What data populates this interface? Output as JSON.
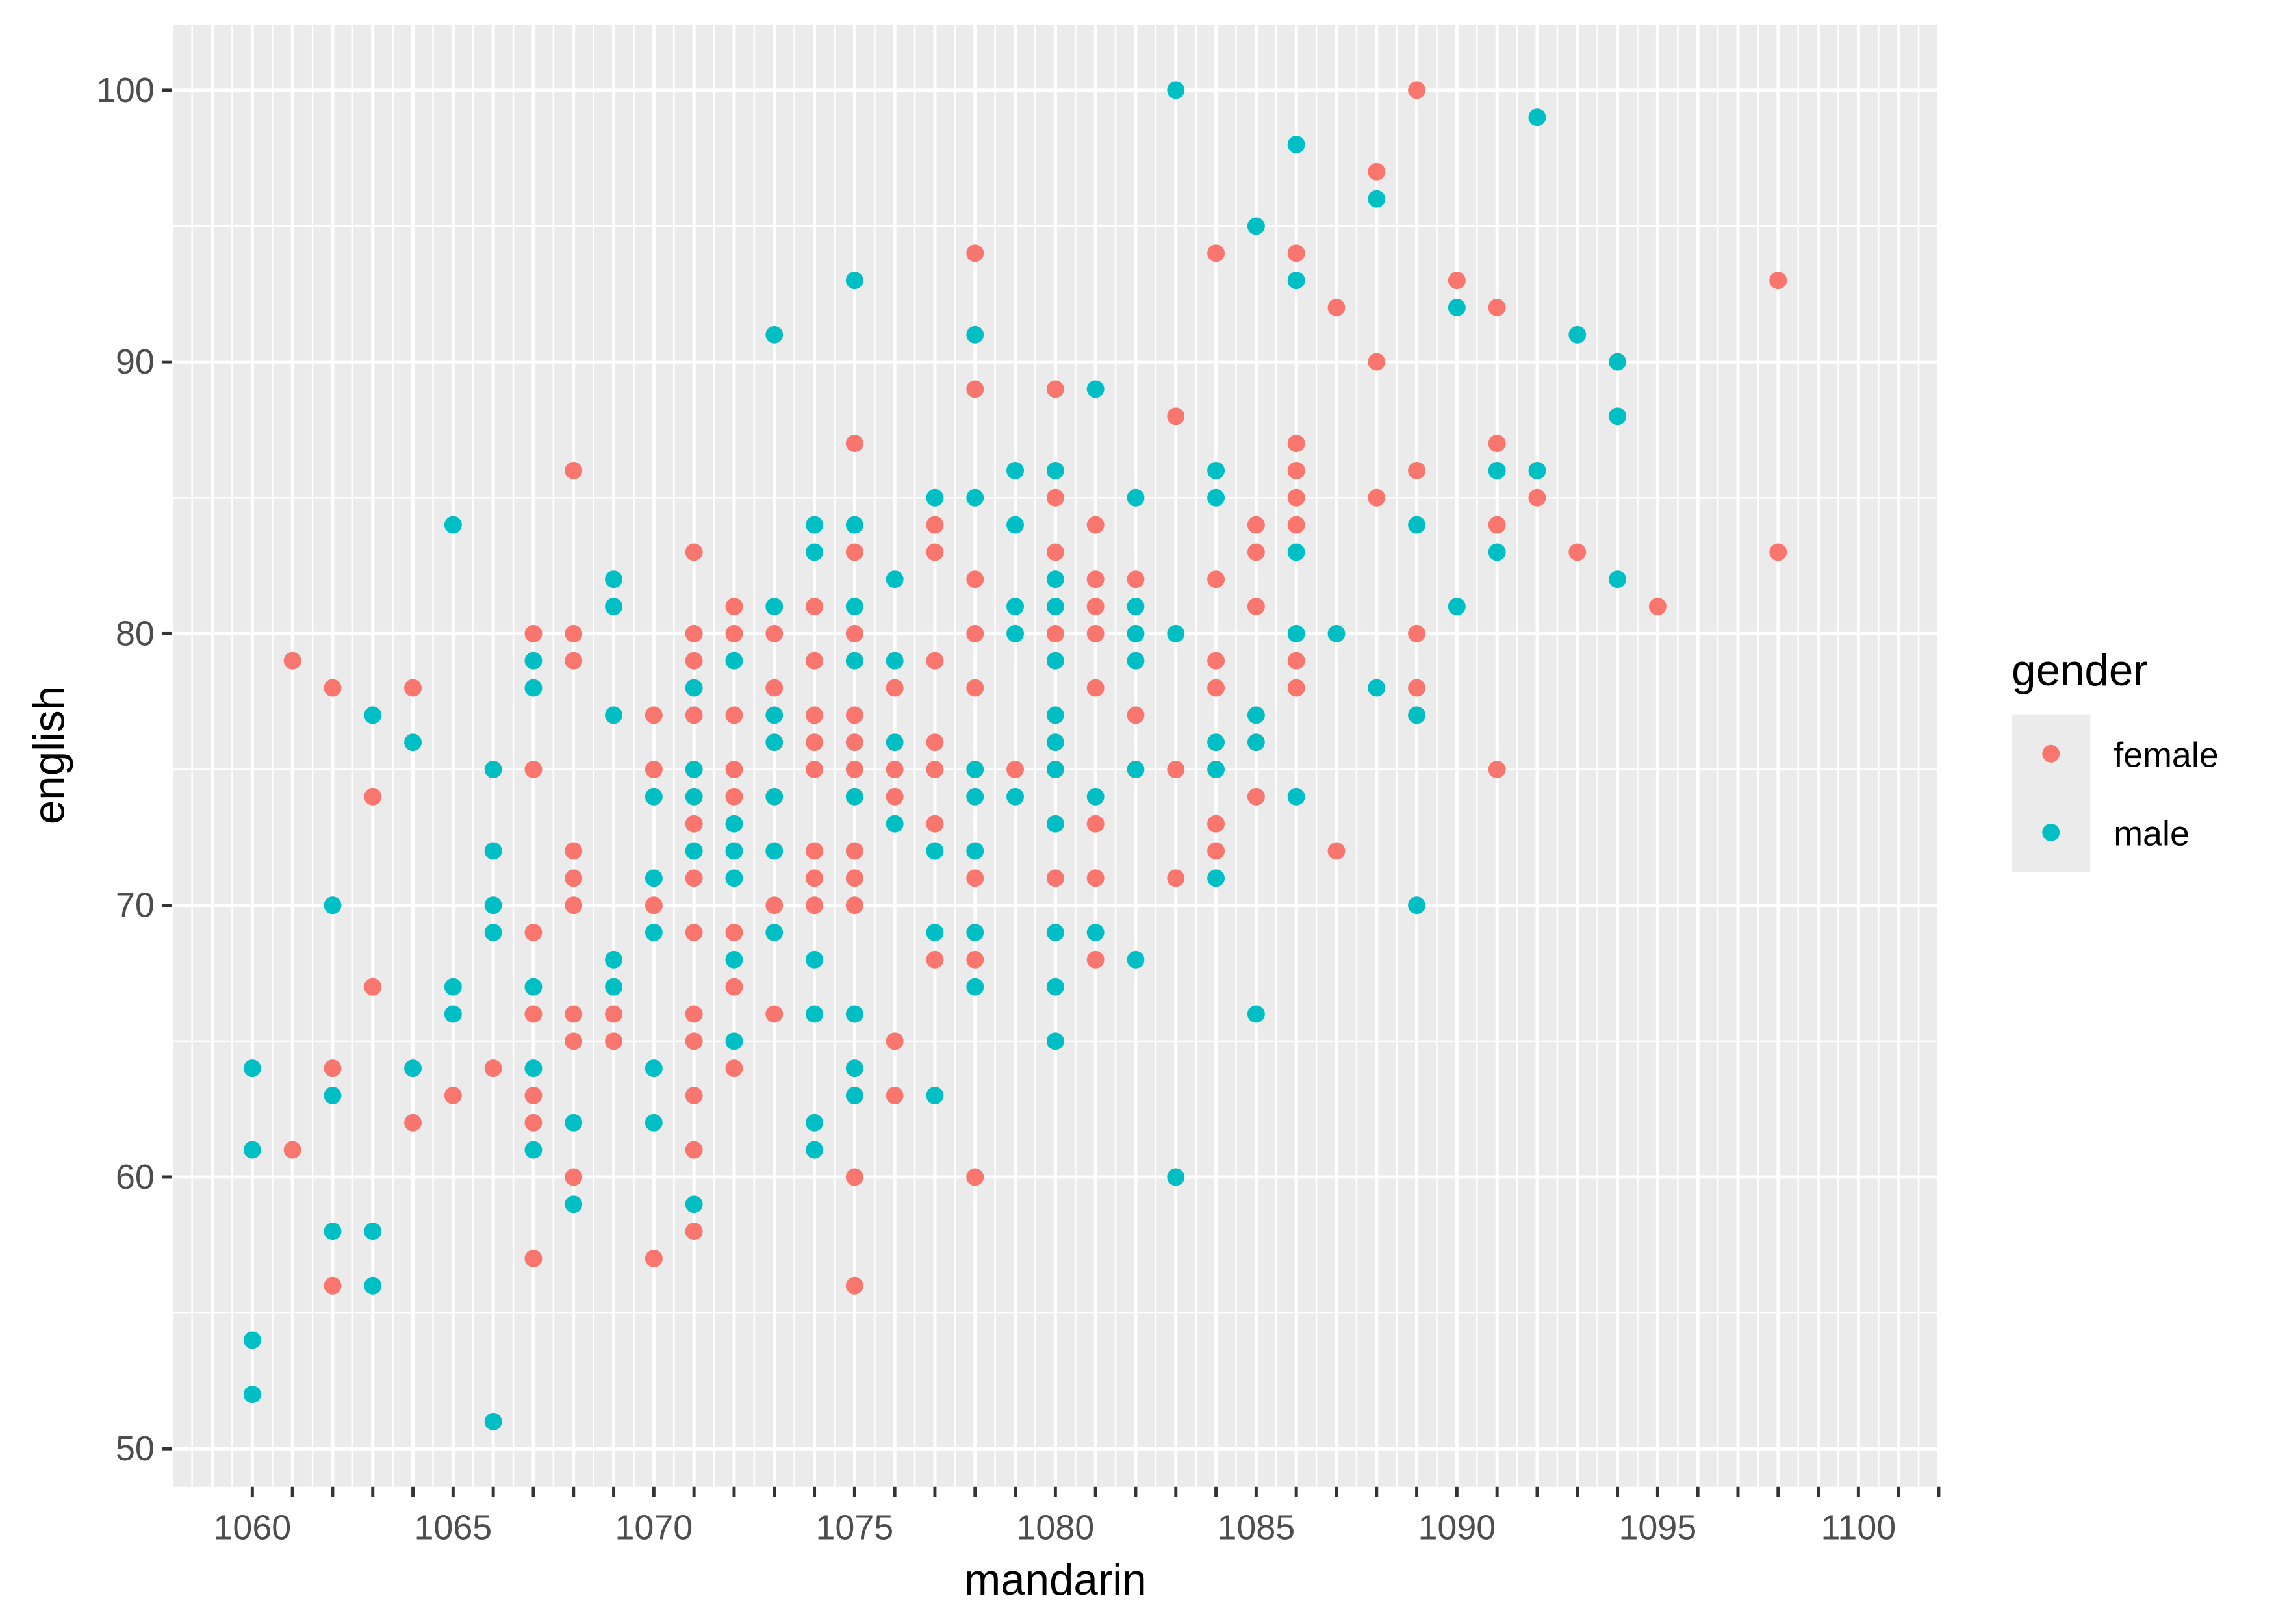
{
  "chart_data": {
    "type": "scatter",
    "xlabel": "mandarin",
    "ylabel": "english",
    "xlim": [
      1058,
      1102
    ],
    "ylim": [
      48.6,
      102.4
    ],
    "x_ticks": [
      1060,
      1065,
      1070,
      1075,
      1080,
      1085,
      1090,
      1095,
      1100
    ],
    "y_ticks": [
      50,
      60,
      70,
      80,
      90,
      100
    ],
    "grid": true,
    "legend": {
      "title": "gender",
      "placement": "right"
    },
    "series": [
      {
        "name": "female",
        "color": "#F8766D",
        "points": [
          [
            1061,
            79
          ],
          [
            1061,
            61
          ],
          [
            1062,
            78
          ],
          [
            1062,
            64
          ],
          [
            1062,
            56
          ],
          [
            1063,
            74
          ],
          [
            1063,
            67
          ],
          [
            1064,
            78
          ],
          [
            1064,
            62
          ],
          [
            1065,
            63
          ],
          [
            1066,
            64
          ],
          [
            1067,
            80
          ],
          [
            1067,
            75
          ],
          [
            1067,
            69
          ],
          [
            1067,
            66
          ],
          [
            1067,
            63
          ],
          [
            1067,
            62
          ],
          [
            1067,
            57
          ],
          [
            1068,
            86
          ],
          [
            1068,
            80
          ],
          [
            1068,
            79
          ],
          [
            1068,
            72
          ],
          [
            1068,
            71
          ],
          [
            1068,
            70
          ],
          [
            1068,
            66
          ],
          [
            1068,
            65
          ],
          [
            1068,
            60
          ],
          [
            1069,
            66
          ],
          [
            1069,
            65
          ],
          [
            1070,
            77
          ],
          [
            1070,
            75
          ],
          [
            1070,
            70
          ],
          [
            1070,
            57
          ],
          [
            1071,
            83
          ],
          [
            1071,
            80
          ],
          [
            1071,
            79
          ],
          [
            1071,
            77
          ],
          [
            1071,
            73
          ],
          [
            1071,
            71
          ],
          [
            1071,
            69
          ],
          [
            1071,
            66
          ],
          [
            1071,
            65
          ],
          [
            1071,
            63
          ],
          [
            1071,
            61
          ],
          [
            1071,
            58
          ],
          [
            1072,
            81
          ],
          [
            1072,
            80
          ],
          [
            1072,
            77
          ],
          [
            1072,
            75
          ],
          [
            1072,
            74
          ],
          [
            1072,
            69
          ],
          [
            1072,
            67
          ],
          [
            1072,
            64
          ],
          [
            1073,
            80
          ],
          [
            1073,
            78
          ],
          [
            1073,
            70
          ],
          [
            1073,
            66
          ],
          [
            1074,
            81
          ],
          [
            1074,
            79
          ],
          [
            1074,
            77
          ],
          [
            1074,
            76
          ],
          [
            1074,
            75
          ],
          [
            1074,
            72
          ],
          [
            1074,
            71
          ],
          [
            1074,
            70
          ],
          [
            1075,
            87
          ],
          [
            1075,
            83
          ],
          [
            1075,
            80
          ],
          [
            1075,
            77
          ],
          [
            1075,
            76
          ],
          [
            1075,
            75
          ],
          [
            1075,
            72
          ],
          [
            1075,
            71
          ],
          [
            1075,
            70
          ],
          [
            1075,
            60
          ],
          [
            1075,
            56
          ],
          [
            1076,
            78
          ],
          [
            1076,
            75
          ],
          [
            1076,
            74
          ],
          [
            1076,
            65
          ],
          [
            1076,
            63
          ],
          [
            1077,
            84
          ],
          [
            1077,
            83
          ],
          [
            1077,
            79
          ],
          [
            1077,
            76
          ],
          [
            1077,
            75
          ],
          [
            1077,
            73
          ],
          [
            1077,
            68
          ],
          [
            1078,
            94
          ],
          [
            1078,
            89
          ],
          [
            1078,
            82
          ],
          [
            1078,
            80
          ],
          [
            1078,
            78
          ],
          [
            1078,
            71
          ],
          [
            1078,
            68
          ],
          [
            1078,
            60
          ],
          [
            1079,
            75
          ],
          [
            1080,
            89
          ],
          [
            1080,
            85
          ],
          [
            1080,
            83
          ],
          [
            1080,
            80
          ],
          [
            1080,
            71
          ],
          [
            1081,
            84
          ],
          [
            1081,
            82
          ],
          [
            1081,
            81
          ],
          [
            1081,
            80
          ],
          [
            1081,
            78
          ],
          [
            1081,
            73
          ],
          [
            1081,
            71
          ],
          [
            1081,
            68
          ],
          [
            1082,
            82
          ],
          [
            1082,
            77
          ],
          [
            1083,
            88
          ],
          [
            1083,
            75
          ],
          [
            1083,
            71
          ],
          [
            1084,
            94
          ],
          [
            1084,
            82
          ],
          [
            1084,
            79
          ],
          [
            1084,
            78
          ],
          [
            1084,
            73
          ],
          [
            1084,
            72
          ],
          [
            1085,
            84
          ],
          [
            1085,
            83
          ],
          [
            1085,
            81
          ],
          [
            1085,
            74
          ],
          [
            1086,
            94
          ],
          [
            1086,
            87
          ],
          [
            1086,
            86
          ],
          [
            1086,
            85
          ],
          [
            1086,
            84
          ],
          [
            1086,
            79
          ],
          [
            1086,
            78
          ],
          [
            1087,
            92
          ],
          [
            1087,
            72
          ],
          [
            1088,
            97
          ],
          [
            1088,
            90
          ],
          [
            1088,
            85
          ],
          [
            1089,
            100
          ],
          [
            1089,
            86
          ],
          [
            1089,
            80
          ],
          [
            1089,
            78
          ],
          [
            1090,
            93
          ],
          [
            1091,
            92
          ],
          [
            1091,
            87
          ],
          [
            1091,
            84
          ],
          [
            1091,
            75
          ],
          [
            1092,
            85
          ],
          [
            1093,
            83
          ],
          [
            1095,
            81
          ],
          [
            1098,
            93
          ],
          [
            1098,
            83
          ]
        ]
      },
      {
        "name": "male",
        "color": "#00BFC4",
        "points": [
          [
            1060,
            64
          ],
          [
            1060,
            61
          ],
          [
            1060,
            54
          ],
          [
            1060,
            52
          ],
          [
            1062,
            70
          ],
          [
            1062,
            63
          ],
          [
            1062,
            58
          ],
          [
            1063,
            77
          ],
          [
            1063,
            58
          ],
          [
            1063,
            56
          ],
          [
            1064,
            76
          ],
          [
            1064,
            64
          ],
          [
            1065,
            84
          ],
          [
            1065,
            67
          ],
          [
            1065,
            66
          ],
          [
            1066,
            75
          ],
          [
            1066,
            72
          ],
          [
            1066,
            70
          ],
          [
            1066,
            69
          ],
          [
            1066,
            51
          ],
          [
            1067,
            79
          ],
          [
            1067,
            78
          ],
          [
            1067,
            67
          ],
          [
            1067,
            64
          ],
          [
            1067,
            61
          ],
          [
            1068,
            62
          ],
          [
            1068,
            59
          ],
          [
            1069,
            82
          ],
          [
            1069,
            81
          ],
          [
            1069,
            77
          ],
          [
            1069,
            68
          ],
          [
            1069,
            67
          ],
          [
            1070,
            74
          ],
          [
            1070,
            71
          ],
          [
            1070,
            69
          ],
          [
            1070,
            64
          ],
          [
            1070,
            62
          ],
          [
            1071,
            78
          ],
          [
            1071,
            75
          ],
          [
            1071,
            74
          ],
          [
            1071,
            72
          ],
          [
            1071,
            59
          ],
          [
            1072,
            79
          ],
          [
            1072,
            73
          ],
          [
            1072,
            72
          ],
          [
            1072,
            71
          ],
          [
            1072,
            68
          ],
          [
            1072,
            65
          ],
          [
            1073,
            91
          ],
          [
            1073,
            81
          ],
          [
            1073,
            77
          ],
          [
            1073,
            76
          ],
          [
            1073,
            74
          ],
          [
            1073,
            72
          ],
          [
            1073,
            69
          ],
          [
            1074,
            84
          ],
          [
            1074,
            83
          ],
          [
            1074,
            68
          ],
          [
            1074,
            66
          ],
          [
            1074,
            62
          ],
          [
            1074,
            61
          ],
          [
            1075,
            93
          ],
          [
            1075,
            84
          ],
          [
            1075,
            81
          ],
          [
            1075,
            79
          ],
          [
            1075,
            74
          ],
          [
            1075,
            66
          ],
          [
            1075,
            64
          ],
          [
            1075,
            63
          ],
          [
            1076,
            82
          ],
          [
            1076,
            79
          ],
          [
            1076,
            76
          ],
          [
            1076,
            73
          ],
          [
            1077,
            85
          ],
          [
            1077,
            72
          ],
          [
            1077,
            69
          ],
          [
            1077,
            63
          ],
          [
            1078,
            91
          ],
          [
            1078,
            85
          ],
          [
            1078,
            75
          ],
          [
            1078,
            74
          ],
          [
            1078,
            72
          ],
          [
            1078,
            69
          ],
          [
            1078,
            67
          ],
          [
            1079,
            86
          ],
          [
            1079,
            84
          ],
          [
            1079,
            81
          ],
          [
            1079,
            80
          ],
          [
            1079,
            74
          ],
          [
            1080,
            86
          ],
          [
            1080,
            82
          ],
          [
            1080,
            81
          ],
          [
            1080,
            79
          ],
          [
            1080,
            77
          ],
          [
            1080,
            76
          ],
          [
            1080,
            75
          ],
          [
            1080,
            73
          ],
          [
            1080,
            69
          ],
          [
            1080,
            67
          ],
          [
            1080,
            65
          ],
          [
            1081,
            89
          ],
          [
            1081,
            74
          ],
          [
            1081,
            69
          ],
          [
            1082,
            85
          ],
          [
            1082,
            81
          ],
          [
            1082,
            80
          ],
          [
            1082,
            79
          ],
          [
            1082,
            75
          ],
          [
            1082,
            68
          ],
          [
            1083,
            100
          ],
          [
            1083,
            80
          ],
          [
            1083,
            60
          ],
          [
            1084,
            86
          ],
          [
            1084,
            85
          ],
          [
            1084,
            76
          ],
          [
            1084,
            75
          ],
          [
            1084,
            71
          ],
          [
            1085,
            95
          ],
          [
            1085,
            77
          ],
          [
            1085,
            76
          ],
          [
            1085,
            66
          ],
          [
            1086,
            98
          ],
          [
            1086,
            93
          ],
          [
            1086,
            83
          ],
          [
            1086,
            80
          ],
          [
            1086,
            74
          ],
          [
            1087,
            80
          ],
          [
            1088,
            96
          ],
          [
            1088,
            78
          ],
          [
            1089,
            84
          ],
          [
            1089,
            77
          ],
          [
            1089,
            70
          ],
          [
            1090,
            92
          ],
          [
            1090,
            81
          ],
          [
            1091,
            86
          ],
          [
            1091,
            83
          ],
          [
            1092,
            99
          ],
          [
            1092,
            86
          ],
          [
            1093,
            91
          ],
          [
            1094,
            90
          ],
          [
            1094,
            88
          ],
          [
            1094,
            82
          ]
        ]
      }
    ]
  }
}
